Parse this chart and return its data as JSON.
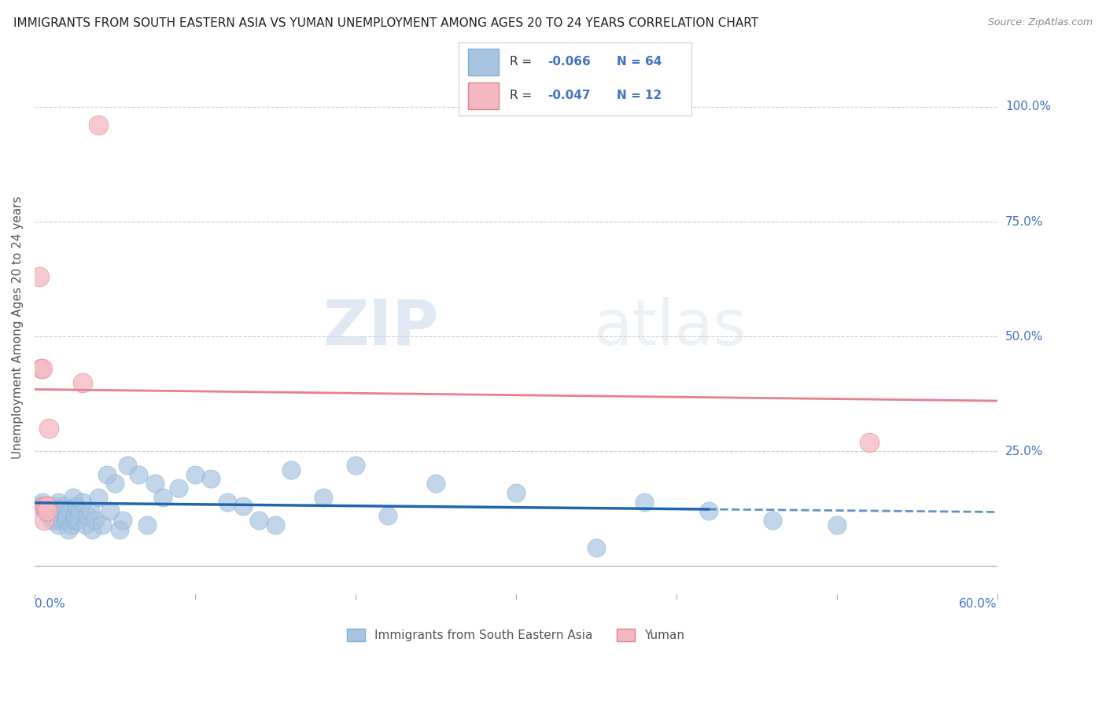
{
  "title": "IMMIGRANTS FROM SOUTH EASTERN ASIA VS YUMAN UNEMPLOYMENT AMONG AGES 20 TO 24 YEARS CORRELATION CHART",
  "source": "Source: ZipAtlas.com",
  "ylabel": "Unemployment Among Ages 20 to 24 years",
  "xmin": 0.0,
  "xmax": 0.6,
  "ymin": -0.06,
  "ymax": 1.1,
  "yticks": [
    0.0,
    0.25,
    0.5,
    0.75,
    1.0
  ],
  "ytick_labels": [
    "",
    "25.0%",
    "50.0%",
    "75.0%",
    "100.0%"
  ],
  "legend_r1": "-0.066",
  "legend_n1": "64",
  "legend_r2": "-0.047",
  "legend_n2": "12",
  "blue_color": "#a8c4e0",
  "blue_edge_color": "#7bafd4",
  "blue_line_color": "#2166ac",
  "pink_color": "#f4b8c1",
  "pink_edge_color": "#e08090",
  "pink_line_color": "#e87f8e",
  "background": "#ffffff",
  "watermark_zip": "ZIP",
  "watermark_atlas": "atlas",
  "grid_color": "#cccccc",
  "blue_scatter_x": [
    0.003,
    0.005,
    0.007,
    0.008,
    0.009,
    0.01,
    0.011,
    0.012,
    0.013,
    0.014,
    0.015,
    0.015,
    0.016,
    0.017,
    0.018,
    0.018,
    0.019,
    0.02,
    0.02,
    0.021,
    0.022,
    0.023,
    0.024,
    0.025,
    0.025,
    0.026,
    0.027,
    0.028,
    0.03,
    0.032,
    0.033,
    0.035,
    0.036,
    0.038,
    0.04,
    0.042,
    0.045,
    0.047,
    0.05,
    0.053,
    0.055,
    0.058,
    0.065,
    0.07,
    0.075,
    0.08,
    0.09,
    0.1,
    0.11,
    0.12,
    0.13,
    0.14,
    0.15,
    0.16,
    0.18,
    0.2,
    0.22,
    0.25,
    0.3,
    0.35,
    0.38,
    0.42,
    0.46,
    0.5
  ],
  "blue_scatter_y": [
    0.13,
    0.14,
    0.12,
    0.13,
    0.11,
    0.12,
    0.1,
    0.11,
    0.13,
    0.1,
    0.14,
    0.09,
    0.12,
    0.1,
    0.12,
    0.13,
    0.1,
    0.1,
    0.11,
    0.08,
    0.12,
    0.09,
    0.15,
    0.1,
    0.11,
    0.13,
    0.1,
    0.12,
    0.14,
    0.09,
    0.11,
    0.12,
    0.08,
    0.1,
    0.15,
    0.09,
    0.2,
    0.12,
    0.18,
    0.08,
    0.1,
    0.22,
    0.2,
    0.09,
    0.18,
    0.15,
    0.17,
    0.2,
    0.19,
    0.14,
    0.13,
    0.1,
    0.09,
    0.21,
    0.15,
    0.22,
    0.11,
    0.18,
    0.16,
    0.04,
    0.14,
    0.12,
    0.1,
    0.09
  ],
  "pink_scatter_x": [
    0.003,
    0.004,
    0.005,
    0.006,
    0.006,
    0.007,
    0.008,
    0.008,
    0.009,
    0.03,
    0.04,
    0.52
  ],
  "pink_scatter_y": [
    0.63,
    0.43,
    0.43,
    0.13,
    0.1,
    0.13,
    0.13,
    0.12,
    0.3,
    0.4,
    0.96,
    0.27
  ],
  "blue_trend_x0": 0.0,
  "blue_trend_x1": 0.42,
  "blue_trend_x2": 0.6,
  "blue_trend_y0": 0.138,
  "blue_trend_y1": 0.124,
  "blue_trend_y2": 0.118,
  "pink_trend_x0": 0.0,
  "pink_trend_x1": 0.6,
  "pink_trend_y0": 0.385,
  "pink_trend_y1": 0.36
}
